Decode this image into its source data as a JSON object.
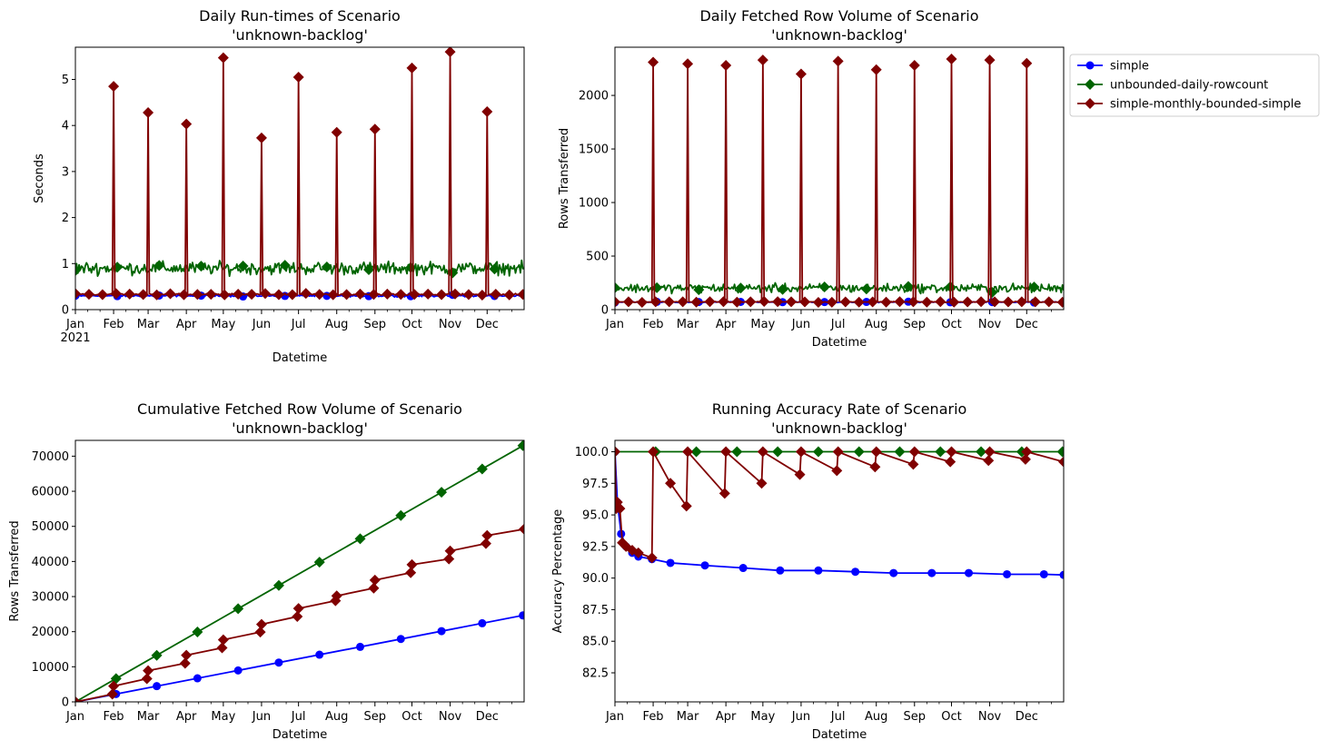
{
  "legend": {
    "entries": [
      {
        "label": "simple",
        "color": "#0000ff",
        "marker": "circle"
      },
      {
        "label": "unbounded-daily-rowcount",
        "color": "#006400",
        "marker": "diamond"
      },
      {
        "label": "simple-monthly-bounded-simple",
        "color": "#800000",
        "marker": "diamond"
      }
    ]
  },
  "month_labels": [
    "Jan",
    "Feb",
    "Mar",
    "Apr",
    "May",
    "Jun",
    "Jul",
    "Aug",
    "Sep",
    "Oct",
    "Nov",
    "Dec"
  ],
  "year_label": "2021",
  "chart_data": [
    {
      "type": "line",
      "title": [
        "Daily Run-times of Scenario",
        "'unknown-backlog'"
      ],
      "xlabel": "Datetime",
      "ylabel": "Seconds",
      "x_range": [
        "2021-01-01",
        "2021-12-31"
      ],
      "ylim": [
        0,
        5.7
      ],
      "yticks": [
        0,
        1,
        2,
        3,
        4,
        5
      ],
      "series": [
        {
          "name": "simple",
          "baseline": 0.3,
          "noise": 0.03
        },
        {
          "name": "unbounded-daily-rowcount",
          "baseline": 0.9,
          "noise": 0.2
        },
        {
          "name": "simple-monthly-bounded-simple",
          "baseline": 0.33,
          "noise": 0.03,
          "spikes": [
            [
              "2021-02-01",
              4.85
            ],
            [
              "2021-03-01",
              4.28
            ],
            [
              "2021-04-01",
              4.03
            ],
            [
              "2021-05-01",
              5.47
            ],
            [
              "2021-06-01",
              3.73
            ],
            [
              "2021-07-01",
              5.05
            ],
            [
              "2021-08-01",
              3.85
            ],
            [
              "2021-09-01",
              3.92
            ],
            [
              "2021-10-01",
              5.25
            ],
            [
              "2021-11-01",
              5.6
            ],
            [
              "2021-12-01",
              4.3
            ]
          ]
        }
      ]
    },
    {
      "type": "line",
      "title": [
        "Daily Fetched Row Volume of Scenario",
        "'unknown-backlog'"
      ],
      "xlabel": "Datetime",
      "ylabel": "Rows Transferred",
      "x_range": [
        "2021-01-01",
        "2021-12-31"
      ],
      "ylim": [
        0,
        2450
      ],
      "yticks": [
        0,
        500,
        1000,
        1500,
        2000
      ],
      "series": [
        {
          "name": "simple",
          "baseline": 70,
          "noise": 6
        },
        {
          "name": "unbounded-daily-rowcount",
          "baseline": 200,
          "noise": 60
        },
        {
          "name": "simple-monthly-bounded-simple",
          "baseline": 72,
          "noise": 6,
          "spikes": [
            [
              "2021-02-01",
              2310
            ],
            [
              "2021-03-01",
              2295
            ],
            [
              "2021-04-01",
              2280
            ],
            [
              "2021-05-01",
              2330
            ],
            [
              "2021-06-01",
              2200
            ],
            [
              "2021-07-01",
              2320
            ],
            [
              "2021-08-01",
              2240
            ],
            [
              "2021-09-01",
              2280
            ],
            [
              "2021-10-01",
              2340
            ],
            [
              "2021-11-01",
              2330
            ],
            [
              "2021-12-01",
              2300
            ]
          ]
        }
      ]
    },
    {
      "type": "line",
      "title": [
        "Cumulative Fetched Row Volume of Scenario",
        "'unknown-backlog'"
      ],
      "xlabel": "Datetime",
      "ylabel": "Rows Transferred",
      "x_range": [
        "2021-01-01",
        "2021-12-31"
      ],
      "ylim": [
        0,
        74500
      ],
      "yticks": [
        0,
        10000,
        20000,
        30000,
        40000,
        50000,
        60000,
        70000
      ],
      "series": [
        {
          "name": "simple",
          "x": [
            "2021-01-01",
            "2021-12-31"
          ],
          "y": [
            0,
            24700
          ]
        },
        {
          "name": "unbounded-daily-rowcount",
          "x": [
            "2021-01-01",
            "2021-12-31"
          ],
          "y": [
            0,
            73200
          ]
        },
        {
          "name": "simple-monthly-bounded-simple",
          "x": [
            "2021-01-01",
            "2021-01-31",
            "2021-02-01",
            "2021-02-28",
            "2021-03-01",
            "2021-03-31",
            "2021-04-01",
            "2021-04-30",
            "2021-05-01",
            "2021-05-31",
            "2021-06-01",
            "2021-06-30",
            "2021-07-01",
            "2021-07-31",
            "2021-08-01",
            "2021-08-31",
            "2021-09-01",
            "2021-09-30",
            "2021-10-01",
            "2021-10-31",
            "2021-11-01",
            "2021-11-30",
            "2021-12-01",
            "2021-12-31"
          ],
          "y": [
            0,
            2200,
            4500,
            6600,
            8900,
            11000,
            13300,
            15400,
            17700,
            19900,
            22100,
            24300,
            26600,
            28800,
            30200,
            32400,
            34700,
            36800,
            39100,
            40700,
            43000,
            45100,
            47400,
            49200
          ]
        }
      ]
    },
    {
      "type": "line",
      "title": [
        "Running Accuracy Rate of Scenario",
        "'unknown-backlog'"
      ],
      "xlabel": "Datetime",
      "ylabel": "Accuracy Percentage",
      "x_range": [
        "2021-01-01",
        "2021-12-31"
      ],
      "ylim": [
        80.2,
        100.9
      ],
      "yticks": [
        82.5,
        85.0,
        87.5,
        90.0,
        92.5,
        95.0,
        97.5,
        100.0
      ],
      "series": [
        {
          "name": "simple",
          "x": [
            "2021-01-01",
            "2021-01-03",
            "2021-01-06",
            "2021-01-10",
            "2021-01-15",
            "2021-01-20",
            "2021-01-31",
            "2021-02-15",
            "2021-03-15",
            "2021-04-15",
            "2021-05-15",
            "2021-06-15",
            "2021-07-15",
            "2021-08-15",
            "2021-09-15",
            "2021-10-15",
            "2021-11-15",
            "2021-12-15",
            "2021-12-31"
          ],
          "y": [
            100.0,
            96.0,
            93.5,
            92.5,
            92.0,
            91.7,
            91.5,
            91.2,
            91.0,
            90.8,
            90.6,
            90.6,
            90.5,
            90.4,
            90.4,
            90.4,
            90.3,
            90.3,
            90.25
          ]
        },
        {
          "name": "unbounded-daily-rowcount",
          "x": [
            "2021-01-01",
            "2021-12-31"
          ],
          "y": [
            100.0,
            100.0
          ]
        },
        {
          "name": "simple-monthly-bounded-simple",
          "x": [
            "2021-01-01",
            "2021-01-02",
            "2021-01-03",
            "2021-01-05",
            "2021-01-07",
            "2021-01-10",
            "2021-01-15",
            "2021-01-20",
            "2021-01-31",
            "2021-02-01",
            "2021-02-15",
            "2021-02-28",
            "2021-03-01",
            "2021-03-31",
            "2021-04-01",
            "2021-04-30",
            "2021-05-01",
            "2021-05-31",
            "2021-06-01",
            "2021-06-30",
            "2021-07-01",
            "2021-07-31",
            "2021-08-01",
            "2021-08-31",
            "2021-09-01",
            "2021-09-30",
            "2021-10-01",
            "2021-10-31",
            "2021-11-01",
            "2021-11-30",
            "2021-12-01",
            "2021-12-31"
          ],
          "y": [
            100.0,
            95.5,
            96.0,
            95.5,
            92.8,
            92.5,
            92.2,
            92.0,
            91.6,
            100.0,
            97.5,
            95.7,
            100.0,
            96.7,
            100.0,
            97.5,
            100.0,
            98.2,
            100.0,
            98.5,
            100.0,
            98.8,
            100.0,
            99.0,
            100.0,
            99.2,
            100.0,
            99.3,
            100.0,
            99.4,
            100.0,
            99.2
          ]
        }
      ]
    }
  ]
}
